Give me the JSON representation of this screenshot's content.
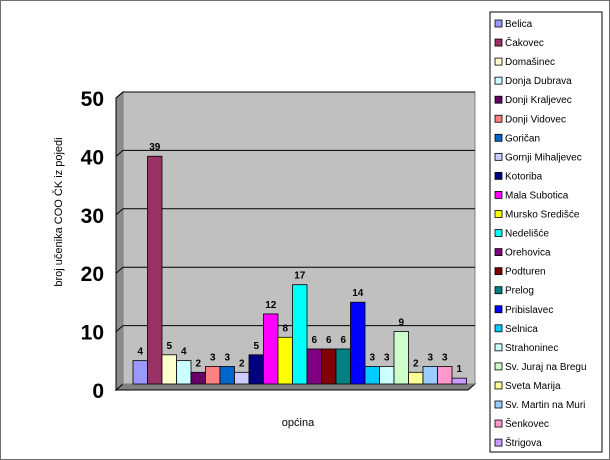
{
  "chart_data": {
    "type": "bar",
    "xlabel": "općina",
    "ylabel": "broj učenika COO ČK iz pojedi",
    "ylim": [
      0,
      50
    ],
    "yticks": [
      0,
      10,
      20,
      30,
      40,
      50
    ],
    "grid": true,
    "legend": "right",
    "plot_background": "#c0c0c0",
    "series": [
      {
        "name": "Belica",
        "value": 4,
        "color": "#9999ff"
      },
      {
        "name": "Čakovec",
        "value": 39,
        "color": "#993366"
      },
      {
        "name": "Domašinec",
        "value": 5,
        "color": "#ffffcc"
      },
      {
        "name": "Donja Dubrava",
        "value": 4,
        "color": "#ccffff"
      },
      {
        "name": "Donji Kraljevec",
        "value": 2,
        "color": "#660066"
      },
      {
        "name": "Donji Vidovec",
        "value": 3,
        "color": "#ff8080"
      },
      {
        "name": "Goričan",
        "value": 3,
        "color": "#0066cc"
      },
      {
        "name": "Gornji Mihaljevec",
        "value": 2,
        "color": "#ccccff"
      },
      {
        "name": "Kotoriba",
        "value": 5,
        "color": "#000080"
      },
      {
        "name": "Mala Subotica",
        "value": 12,
        "color": "#ff00ff"
      },
      {
        "name": "Mursko Središće",
        "value": 8,
        "color": "#ffff00"
      },
      {
        "name": "Nedelišće",
        "value": 17,
        "color": "#00ffff"
      },
      {
        "name": "Orehovica",
        "value": 6,
        "color": "#800080"
      },
      {
        "name": "Podturen",
        "value": 6,
        "color": "#800000"
      },
      {
        "name": "Prelog",
        "value": 6,
        "color": "#008080"
      },
      {
        "name": "Pribislavec",
        "value": 14,
        "color": "#0000ff"
      },
      {
        "name": "Selnica",
        "value": 3,
        "color": "#00ccff"
      },
      {
        "name": "Strahoninec",
        "value": 3,
        "color": "#ccffff"
      },
      {
        "name": "Sv. Juraj na Bregu",
        "value": 9,
        "color": "#ccffcc"
      },
      {
        "name": "Sveta Marija",
        "value": 2,
        "color": "#ffff99"
      },
      {
        "name": "Sv. Martin na Muri",
        "value": 3,
        "color": "#99ccff"
      },
      {
        "name": "Šenkovec",
        "value": 3,
        "color": "#ff99cc"
      },
      {
        "name": "Štrigova",
        "value": 1,
        "color": "#cc99ff"
      }
    ]
  }
}
